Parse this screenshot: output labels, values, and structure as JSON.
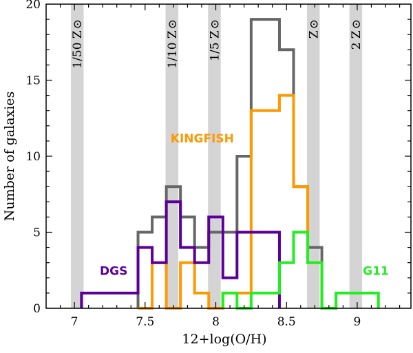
{
  "chart_data": {
    "type": "histogram-step",
    "xlabel": "12+log(O/H)",
    "ylabel": "Number of galaxies",
    "xlim": [
      6.8,
      9.38
    ],
    "ylim": [
      0,
      20
    ],
    "xticks": [
      7,
      7.5,
      8,
      8.5,
      9
    ],
    "xtick_labels": [
      "7",
      "7.5",
      "8",
      "8.5",
      "9"
    ],
    "yticks": [
      0,
      5,
      10,
      15,
      20
    ],
    "ytick_labels": [
      "0",
      "5",
      "10",
      "15",
      "20"
    ],
    "grid": false,
    "bands": [
      {
        "label": "1/50 Z",
        "center": 7.02,
        "width": 0.09
      },
      {
        "label": "1/10 Z",
        "center": 7.69,
        "width": 0.09
      },
      {
        "label": "1/5 Z",
        "center": 7.99,
        "width": 0.09
      },
      {
        "label": "Z",
        "center": 8.69,
        "width": 0.09
      },
      {
        "label": "2 Z",
        "center": 8.99,
        "width": 0.09
      }
    ],
    "series": [
      {
        "name": "",
        "color": "#666666",
        "edges": [
          7.45,
          7.55,
          7.65,
          7.75,
          7.85,
          7.95,
          8.05,
          8.15,
          8.25,
          8.45,
          8.55,
          8.65,
          8.75
        ],
        "counts": [
          5,
          6,
          8,
          6,
          4,
          5,
          5,
          10,
          19,
          17,
          8,
          4
        ]
      },
      {
        "name": "KINGFISH",
        "color": "#ff9900",
        "label_pos": [
          7.68,
          10.9
        ],
        "edges": [
          7.45,
          7.55,
          7.65,
          7.75,
          7.85,
          7.95,
          8.05,
          8.15,
          8.25,
          8.45,
          8.55,
          8.65,
          8.75
        ],
        "counts": [
          0,
          3,
          0,
          3,
          1,
          0,
          1,
          1,
          13,
          14,
          8,
          3
        ]
      },
      {
        "name": "DGS",
        "color": "#5a0099",
        "label_pos": [
          7.18,
          2.2
        ],
        "edges": [
          7.05,
          7.45,
          7.55,
          7.65,
          7.75,
          7.85,
          7.95,
          8.05,
          8.15,
          8.45
        ],
        "counts": [
          1,
          4,
          3,
          7,
          4,
          3,
          6,
          2,
          5
        ]
      },
      {
        "name": "G11",
        "color": "#22ee22",
        "label_pos": [
          9.04,
          2.2
        ],
        "edges": [
          8.05,
          8.15,
          8.25,
          8.45,
          8.55,
          8.65,
          8.75,
          8.85,
          9.15
        ],
        "counts": [
          1,
          0,
          1,
          3,
          5,
          3,
          0,
          1
        ]
      }
    ]
  }
}
